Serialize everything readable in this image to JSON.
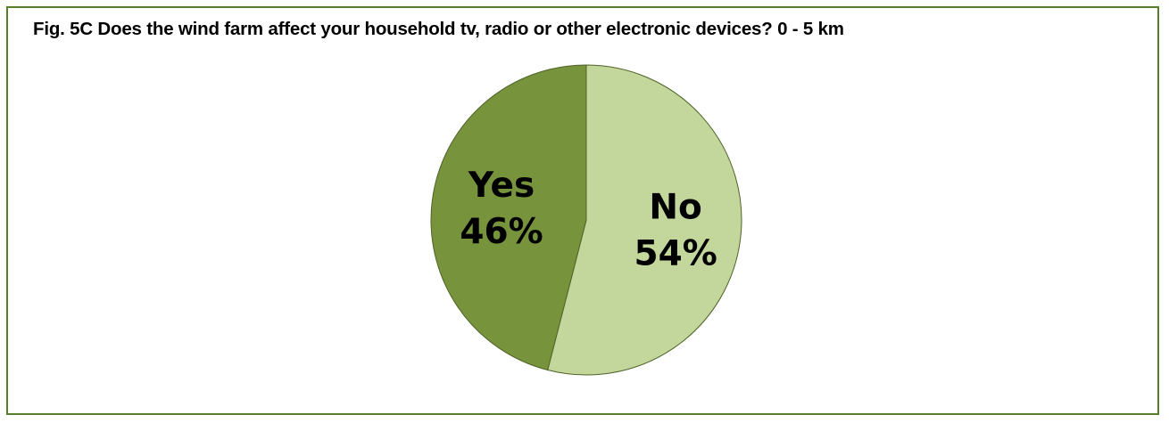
{
  "chart_data": {
    "type": "pie",
    "title": "Fig. 5C Does the wind farm affect your household  tv, radio or other electronic devices? 0 - 5 km",
    "slices": [
      {
        "label": "No",
        "value": 54,
        "value_label": "54%",
        "color": "#c3d69b"
      },
      {
        "label": "Yes",
        "value": 46,
        "value_label": "46%",
        "color": "#77933c"
      }
    ],
    "border_color": "#577f2b",
    "legend": "none"
  }
}
